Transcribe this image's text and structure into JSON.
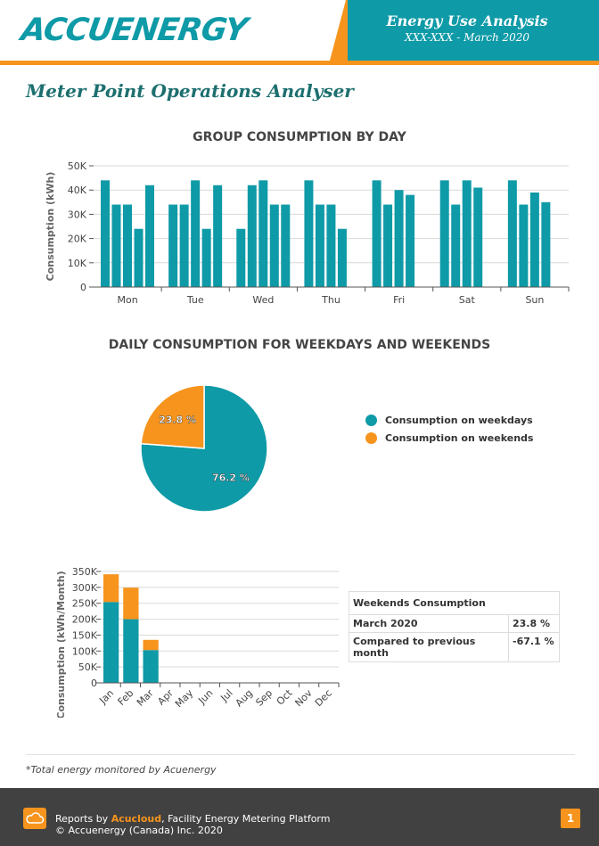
{
  "header": {
    "logo_text": "ACCUENERGY",
    "title": "Energy Use Analysis",
    "subtitle": "XXX-XXX - March 2020"
  },
  "page_title": "Meter Point Operations Analyser",
  "colors": {
    "teal": "#0e9aa7",
    "orange": "#f7941d",
    "dark": "#414141"
  },
  "chart_data": [
    {
      "type": "bar",
      "title": "GROUP CONSUMPTION BY DAY",
      "ylabel": "Consumption (kWh)",
      "ylim": [
        0,
        50000
      ],
      "yticks": [
        "0",
        "10K",
        "20K",
        "30K",
        "40K",
        "50K"
      ],
      "categories": [
        "Mon",
        "Tue",
        "Wed",
        "Thu",
        "Fri",
        "Sat",
        "Sun"
      ],
      "groups": [
        [
          44000,
          34000,
          34000,
          24000,
          42000
        ],
        [
          34000,
          34000,
          44000,
          24000,
          42000
        ],
        [
          24000,
          42000,
          44000,
          34000,
          34000
        ],
        [
          44000,
          34000,
          34000,
          24000
        ],
        [
          44000,
          34000,
          40000,
          38000
        ],
        [
          44000,
          34000,
          44000,
          41000
        ],
        [
          44000,
          34000,
          39000,
          35000
        ]
      ],
      "grid": true
    },
    {
      "type": "pie",
      "title": "DAILY CONSUMPTION FOR WEEKDAYS AND WEEKENDS",
      "slices": [
        {
          "name": "Consumption on weekdays",
          "value": 76.2,
          "label": "76.2 %",
          "color": "#0e9aa7"
        },
        {
          "name": "Consumption on weekends",
          "value": 23.8,
          "label": "23.8 %",
          "color": "#f7941d"
        }
      ],
      "legend": "right"
    },
    {
      "type": "bar",
      "stacked": true,
      "ylabel": "Consumption (kWh/Month)",
      "ylim": [
        0,
        350000
      ],
      "yticks": [
        "0",
        "50K",
        "100K",
        "150K",
        "200K",
        "250K",
        "300K",
        "350K"
      ],
      "categories": [
        "Jan",
        "Feb",
        "Mar",
        "Apr",
        "May",
        "Jun",
        "Jul",
        "Aug",
        "Sep",
        "Oct",
        "Nov",
        "Dec"
      ],
      "series": [
        {
          "values": [
            254000,
            200000,
            103000,
            0,
            0,
            0,
            0,
            0,
            0,
            0,
            0,
            0
          ],
          "color": "#0e9aa7"
        },
        {
          "values": [
            87000,
            99000,
            32000,
            0,
            0,
            0,
            0,
            0,
            0,
            0,
            0,
            0
          ],
          "color": "#f7941d"
        }
      ],
      "grid": true
    }
  ],
  "weekends_table": {
    "header": "Weekends Consumption",
    "rows": [
      {
        "label": "March 2020",
        "value": "23.8 %"
      },
      {
        "label": "Compared to previous month",
        "value": "-67.1 %"
      }
    ]
  },
  "note": "*Total energy monitored by Acuenergy",
  "footer": {
    "line1_prefix": "Reports by ",
    "brand": "Acucloud",
    "line1_suffix": ", Facility Energy Metering Platform",
    "line2": "© Accuenergy (Canada) Inc. 2020",
    "page_number": "1"
  }
}
